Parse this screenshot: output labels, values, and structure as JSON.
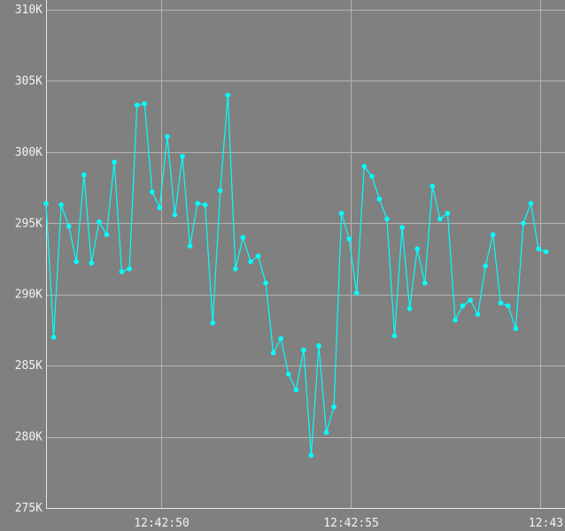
{
  "chart_data": {
    "type": "line",
    "title": "",
    "xlabel": "",
    "ylabel": "",
    "grid": true,
    "line_color": "#00ffff",
    "background_color": "#808080",
    "grid_color": "#b4b4b4",
    "ylim": [
      275000,
      310000
    ],
    "y_ticks": [
      275000,
      280000,
      285000,
      290000,
      295000,
      300000,
      305000,
      310000
    ],
    "y_tick_labels": [
      "275K",
      "280K",
      "285K",
      "290K",
      "295K",
      "300K",
      "305K",
      "310K"
    ],
    "xlim": [
      "12:42:46.95",
      "12:43:00.65"
    ],
    "x_ticks": [
      "12:42:50",
      "12:42:55",
      "12:43:00"
    ],
    "x_tick_labels": [
      "12:42:50",
      "12:42:55",
      "12:43"
    ],
    "series": [
      {
        "points": [
          [
            "12:42:46.95",
            296400
          ],
          [
            "12:42:47.15",
            287000
          ],
          [
            "12:42:47.35",
            296300
          ],
          [
            "12:42:47.55",
            294800
          ],
          [
            "12:42:47.75",
            292300
          ],
          [
            "12:42:47.95",
            298400
          ],
          [
            "12:42:48.15",
            292200
          ],
          [
            "12:42:48.35",
            295100
          ],
          [
            "12:42:48.55",
            294200
          ],
          [
            "12:42:48.75",
            299300
          ],
          [
            "12:42:48.95",
            291600
          ],
          [
            "12:42:49.15",
            291800
          ],
          [
            "12:42:49.35",
            303300
          ],
          [
            "12:42:49.55",
            303400
          ],
          [
            "12:42:49.75",
            297200
          ],
          [
            "12:42:49.95",
            296100
          ],
          [
            "12:42:50.15",
            301100
          ],
          [
            "12:42:50.35",
            295600
          ],
          [
            "12:42:50.55",
            299700
          ],
          [
            "12:42:50.75",
            293400
          ],
          [
            "12:42:50.95",
            296400
          ],
          [
            "12:42:51.15",
            296300
          ],
          [
            "12:42:51.35",
            288000
          ],
          [
            "12:42:51.55",
            297300
          ],
          [
            "12:42:51.75",
            304000
          ],
          [
            "12:42:51.95",
            291800
          ],
          [
            "12:42:52.15",
            294000
          ],
          [
            "12:42:52.35",
            292300
          ],
          [
            "12:42:52.55",
            292700
          ],
          [
            "12:42:52.75",
            290800
          ],
          [
            "12:42:52.95",
            285900
          ],
          [
            "12:42:53.15",
            286900
          ],
          [
            "12:42:53.35",
            284400
          ],
          [
            "12:42:53.55",
            283300
          ],
          [
            "12:42:53.75",
            286100
          ],
          [
            "12:42:53.95",
            278700
          ],
          [
            "12:42:54.15",
            286400
          ],
          [
            "12:42:54.35",
            280300
          ],
          [
            "12:42:54.55",
            282100
          ],
          [
            "12:42:54.75",
            295700
          ],
          [
            "12:42:54.95",
            293900
          ],
          [
            "12:42:55.15",
            290100
          ],
          [
            "12:42:55.35",
            299000
          ],
          [
            "12:42:55.55",
            298300
          ],
          [
            "12:42:55.75",
            296700
          ],
          [
            "12:42:55.95",
            295300
          ],
          [
            "12:42:56.15",
            287100
          ],
          [
            "12:42:56.35",
            294700
          ],
          [
            "12:42:56.55",
            289000
          ],
          [
            "12:42:56.75",
            293200
          ],
          [
            "12:42:56.95",
            290800
          ],
          [
            "12:42:57.15",
            297600
          ],
          [
            "12:42:57.35",
            295300
          ],
          [
            "12:42:57.55",
            295700
          ],
          [
            "12:42:57.75",
            288200
          ],
          [
            "12:42:57.95",
            289200
          ],
          [
            "12:42:58.15",
            289600
          ],
          [
            "12:42:58.35",
            288600
          ],
          [
            "12:42:58.55",
            292000
          ],
          [
            "12:42:58.75",
            294200
          ],
          [
            "12:42:58.95",
            289400
          ],
          [
            "12:42:59.15",
            289200
          ],
          [
            "12:42:59.35",
            287600
          ],
          [
            "12:42:59.55",
            295000
          ],
          [
            "12:42:59.75",
            296400
          ],
          [
            "12:42:59.95",
            293200
          ],
          [
            "12:43:00.15",
            293000
          ]
        ]
      }
    ]
  }
}
